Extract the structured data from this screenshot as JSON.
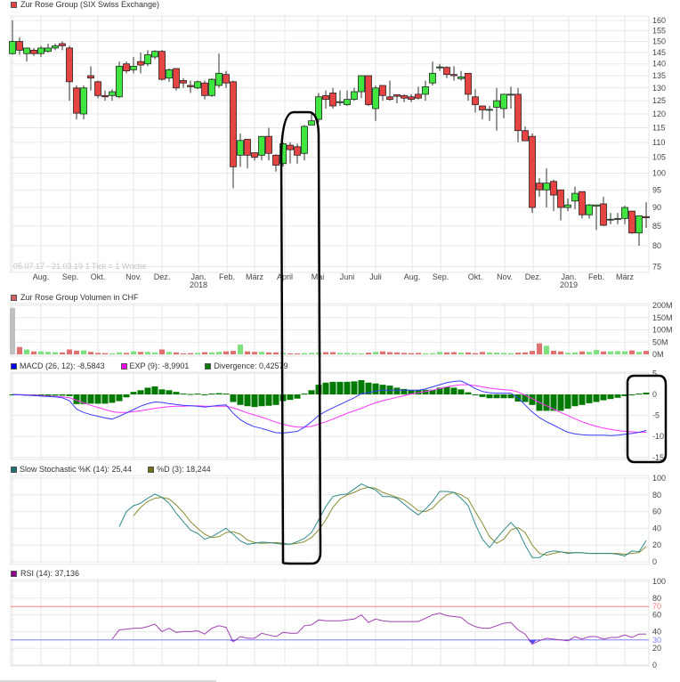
{
  "colors": {
    "up": "#3ee63e",
    "down": "#e84343",
    "macd": "#3a3aff",
    "signal": "#ff33ff",
    "divergence": "#007a00",
    "stoch_k": "#2e8b8b",
    "stoch_d": "#8b8b2e",
    "rsi": "#a040b0",
    "rsi_upper": "#ff8080",
    "rsi_lower": "#8080ff",
    "volume_first": "#c0c0c0",
    "annotation": "#000000"
  },
  "legends": {
    "price": "Zur Rose Group (SIX Swiss Exchange)",
    "volume": "Zur Rose Group Volumen in CHF",
    "macd": "MACD (26, 12): -8,5843",
    "signal": "EXP (9): -8,9901",
    "divergence": "Divergence: 0,42579",
    "stoch_k": "Slow Stochastic %K (14): 25,44",
    "stoch_d": "%D (3): 18,244",
    "rsi": "RSI (14): 37,136"
  },
  "watermark": "05.07.17 - 21.03.19   1 Tick = 1 Woche",
  "chart_data": {
    "type": "candlestick",
    "interval": "weekly",
    "x_ticks": [
      {
        "label": "Aug."
      },
      {
        "label": "Sep."
      },
      {
        "label": "Okt."
      },
      {
        "label": "Nov."
      },
      {
        "label": "Dez."
      },
      {
        "label": "Jan.",
        "year": "2018"
      },
      {
        "label": "Feb."
      },
      {
        "label": "März"
      },
      {
        "label": "April"
      },
      {
        "label": "Mai"
      },
      {
        "label": "Juni"
      },
      {
        "label": "Juli"
      },
      {
        "label": "Aug."
      },
      {
        "label": "Sep."
      },
      {
        "label": "Okt."
      },
      {
        "label": "Nov."
      },
      {
        "label": "Dez."
      },
      {
        "label": "Jan.",
        "year": "2019"
      },
      {
        "label": "Feb."
      },
      {
        "label": "März"
      }
    ],
    "price": {
      "scale": "log",
      "ylim": [
        75,
        160
      ],
      "ticks": [
        160,
        155,
        150,
        145,
        140,
        135,
        130,
        125,
        120,
        115,
        110,
        105,
        100,
        95,
        90,
        85,
        80,
        75
      ],
      "ohlc": [
        [
          144.5,
          160,
          144,
          150
        ],
        [
          150,
          152,
          144,
          146
        ],
        [
          144.5,
          147,
          141,
          147
        ],
        [
          146,
          147,
          143.5,
          144.5
        ],
        [
          144.5,
          148,
          143,
          147
        ],
        [
          145.5,
          149,
          145,
          147
        ],
        [
          147,
          149,
          146,
          148
        ],
        [
          149,
          150,
          146,
          148
        ],
        [
          147,
          148,
          125,
          132.5
        ],
        [
          130,
          131,
          118,
          120.3
        ],
        [
          120,
          131,
          118,
          130
        ],
        [
          135,
          139,
          129,
          134
        ],
        [
          132.5,
          133,
          126,
          127
        ],
        [
          127,
          129,
          125,
          126.5
        ],
        [
          127,
          129.5,
          125,
          128.5
        ],
        [
          126.5,
          141,
          126,
          139
        ],
        [
          140,
          141,
          136,
          137
        ],
        [
          137.5,
          143,
          136,
          139
        ],
        [
          141,
          145,
          136,
          139.5
        ],
        [
          140,
          146,
          139,
          144
        ],
        [
          143,
          146,
          142,
          145.5
        ],
        [
          145.5,
          146,
          133,
          133.5
        ],
        [
          134,
          138,
          132.5,
          137.5
        ],
        [
          138,
          138,
          129,
          130
        ],
        [
          133,
          134,
          130,
          132
        ],
        [
          131,
          133,
          128,
          130.5
        ],
        [
          130,
          133,
          129.5,
          132.5
        ],
        [
          132,
          133,
          125.5,
          127
        ],
        [
          127,
          134,
          126.5,
          133.5
        ],
        [
          131,
          144.5,
          130,
          136
        ],
        [
          135.5,
          137,
          130,
          132
        ],
        [
          132.5,
          133,
          95.5,
          102
        ],
        [
          105.7,
          113,
          102,
          110.6
        ],
        [
          111,
          111,
          101.5,
          105.7
        ],
        [
          106.5,
          106.5,
          104,
          105
        ],
        [
          105.7,
          112,
          104,
          112
        ],
        [
          112,
          115,
          104,
          106.3
        ],
        [
          105.7,
          106,
          100.5,
          102.5
        ],
        [
          103,
          110,
          102,
          109.5
        ],
        [
          109,
          110,
          103,
          107.5
        ],
        [
          108.5,
          109.5,
          103,
          105.7
        ],
        [
          106.3,
          116,
          104,
          115.5
        ],
        [
          116,
          121,
          116,
          117.5
        ],
        [
          118,
          128,
          117,
          126.5
        ],
        [
          127,
          129,
          122,
          125.5
        ],
        [
          128,
          130,
          122,
          123
        ],
        [
          124.6,
          129,
          123,
          124.6
        ],
        [
          123.5,
          129,
          123,
          125.5
        ],
        [
          125.5,
          130,
          125,
          128.5
        ],
        [
          128.5,
          135,
          126,
          135
        ],
        [
          135,
          135,
          123,
          123.5
        ],
        [
          122,
          131,
          117.5,
          130
        ],
        [
          131,
          131,
          125,
          127
        ],
        [
          126.5,
          133,
          125,
          125.5
        ],
        [
          127.3,
          127.5,
          124,
          126.7
        ],
        [
          127,
          127.5,
          124.5,
          126
        ],
        [
          126.5,
          127.5,
          124.5,
          125.5
        ],
        [
          127.5,
          130.5,
          125.5,
          126
        ],
        [
          127.5,
          133,
          125,
          130.5
        ],
        [
          132,
          141,
          131,
          136
        ],
        [
          138.3,
          140,
          137,
          138.7
        ],
        [
          138.5,
          139,
          134,
          135.5
        ],
        [
          135.5,
          139,
          133,
          135
        ],
        [
          133.8,
          137,
          133,
          134.5
        ],
        [
          136,
          136,
          125,
          127.5
        ],
        [
          126.5,
          129.5,
          120.5,
          123.5
        ],
        [
          123,
          123,
          118,
          121.5
        ],
        [
          121.7,
          123,
          117.5,
          121.7
        ],
        [
          122.5,
          130,
          114,
          125
        ],
        [
          122,
          127.5,
          118.5,
          127.5
        ],
        [
          127.3,
          130.5,
          122,
          127.5
        ],
        [
          127.5,
          130,
          110,
          114
        ],
        [
          114,
          115.5,
          110.5,
          110.5
        ],
        [
          112,
          113,
          88.5,
          90
        ],
        [
          97,
          98.5,
          93,
          95
        ],
        [
          95,
          101.5,
          90,
          97
        ],
        [
          97.5,
          98,
          89,
          93.5
        ],
        [
          95,
          95,
          86.5,
          90
        ],
        [
          90,
          92.5,
          89,
          90.7
        ],
        [
          91.8,
          96,
          89.5,
          94
        ],
        [
          94.5,
          94.5,
          87,
          88
        ],
        [
          88,
          91,
          87,
          90.7
        ],
        [
          90.4,
          90.7,
          84,
          90.7
        ],
        [
          91,
          93,
          85,
          85.2
        ],
        [
          86.8,
          88.5,
          85.5,
          86.8
        ],
        [
          87,
          88.5,
          85.5,
          87
        ],
        [
          87,
          90.5,
          85.5,
          90
        ],
        [
          89,
          89,
          83,
          83.2
        ],
        [
          83.2,
          87.7,
          80,
          87.7
        ],
        [
          87.5,
          91.5,
          84.5,
          87.2
        ]
      ]
    },
    "volume": {
      "unit": "M CHF",
      "ylim": [
        0,
        200
      ],
      "ticks": [
        "200M",
        "150M",
        "100M",
        "50M",
        "0M"
      ],
      "values": [
        190,
        30,
        20,
        12,
        12,
        10,
        9,
        8,
        20,
        15,
        16,
        10,
        6,
        5,
        4,
        8,
        6,
        12,
        10,
        10,
        8,
        20,
        10,
        8,
        4,
        5,
        6,
        9,
        8,
        10,
        12,
        14,
        40,
        12,
        10,
        10,
        8,
        8,
        6,
        4,
        4,
        5,
        6,
        8,
        9,
        9,
        6,
        6,
        5,
        4,
        7,
        10,
        12,
        9,
        8,
        6,
        5,
        6,
        4,
        5,
        10,
        8,
        9,
        7,
        8,
        5,
        10,
        8,
        7,
        6,
        5,
        7,
        8,
        14,
        45,
        35,
        15,
        12,
        6,
        8,
        12,
        10,
        18,
        12,
        12,
        13,
        12,
        16,
        10,
        14
      ]
    },
    "macd": {
      "ylim": [
        -15,
        5
      ],
      "ticks": [
        5,
        0,
        -5,
        -10,
        -15
      ],
      "macd": [
        0,
        -0.1,
        -0.2,
        -0.3,
        -0.4,
        -0.5,
        -0.6,
        -0.8,
        -1.5,
        -3.5,
        -4.3,
        -4.8,
        -5.2,
        -5.6,
        -5.9,
        -5.2,
        -4.4,
        -3.6,
        -2.8,
        -2.2,
        -1.8,
        -1.9,
        -2.2,
        -2.4,
        -2.6,
        -2.7,
        -2.8,
        -3.0,
        -2.8,
        -2.6,
        -2.5,
        -4.5,
        -6.0,
        -7.0,
        -7.7,
        -8.1,
        -8.6,
        -9.1,
        -9.2,
        -9.0,
        -8.8,
        -7.8,
        -6.5,
        -5.0,
        -4.0,
        -3.2,
        -2.4,
        -1.6,
        -0.8,
        0.2,
        0.4,
        0.8,
        1.0,
        1.0,
        1.0,
        1.0,
        1.0,
        1.0,
        1.3,
        1.8,
        2.3,
        2.8,
        3.1,
        3.2,
        2.4,
        1.4,
        0.7,
        0.4,
        0.3,
        0.3,
        0.3,
        -0.8,
        -2.5,
        -4.2,
        -5.5,
        -6.5,
        -7.3,
        -8.2,
        -9.0,
        -9.4,
        -9.6,
        -9.7,
        -9.7,
        -9.7,
        -9.8,
        -9.7,
        -9.5,
        -9.3,
        -9.0,
        -8.58
      ],
      "signal": [
        0,
        -0.05,
        -0.1,
        -0.2,
        -0.3,
        -0.4,
        -0.5,
        -0.6,
        -0.8,
        -1.4,
        -2.0,
        -2.6,
        -3.1,
        -3.6,
        -4.1,
        -4.3,
        -4.3,
        -4.1,
        -3.9,
        -3.6,
        -3.3,
        -3.1,
        -2.9,
        -2.8,
        -2.8,
        -2.7,
        -2.7,
        -2.8,
        -2.8,
        -2.8,
        -2.8,
        -3.2,
        -3.8,
        -4.4,
        -4.9,
        -5.4,
        -6.0,
        -6.6,
        -7.1,
        -7.5,
        -7.8,
        -7.8,
        -7.6,
        -7.1,
        -6.5,
        -5.9,
        -5.2,
        -4.5,
        -3.9,
        -3.3,
        -2.6,
        -2.0,
        -1.5,
        -1.1,
        -0.7,
        -0.3,
        0.1,
        0.4,
        0.7,
        1.0,
        1.4,
        1.8,
        2.1,
        2.3,
        2.3,
        2.1,
        1.8,
        1.5,
        1.3,
        1.1,
        1.0,
        0.6,
        -0.2,
        -1.0,
        -1.9,
        -2.7,
        -3.5,
        -4.3,
        -5.0,
        -5.8,
        -6.5,
        -7.1,
        -7.6,
        -8.0,
        -8.3,
        -8.6,
        -8.8,
        -8.9,
        -9.0,
        -8.99
      ],
      "divergence": [
        0,
        -0.2,
        -0.3,
        -0.3,
        -0.3,
        -0.3,
        -0.3,
        -0.3,
        -0.4,
        -2.3,
        -2.3,
        -2.2,
        -2.2,
        -2.2,
        -2.0,
        -1.6,
        -0.7,
        0.6,
        1.0,
        1.6,
        1.9,
        1.2,
        1.0,
        0.6,
        0.2,
        0.1,
        0.2,
        -0.1,
        0.2,
        0.3,
        0.2,
        -1.8,
        -2.5,
        -2.8,
        -3.0,
        -2.8,
        -2.7,
        -2.5,
        -1.6,
        -1.3,
        -1.0,
        0.2,
        1.0,
        2.3,
        2.8,
        3.0,
        3.0,
        3.0,
        3.1,
        3.4,
        2.8,
        2.6,
        2.3,
        2.1,
        1.6,
        1.3,
        1.1,
        1.1,
        1.1,
        1.1,
        1.6,
        1.8,
        1.6,
        1.2,
        0.5,
        0.0,
        -0.6,
        -0.9,
        -0.9,
        -0.9,
        -0.9,
        -1.7,
        -1.8,
        -2.5,
        -3.9,
        -3.9,
        -3.9,
        -3.9,
        -3.4,
        -2.8,
        -2.5,
        -2.1,
        -1.8,
        -1.4,
        -1.1,
        -0.8,
        -0.4,
        0.0,
        0.2,
        0.43
      ]
    },
    "stochastic": {
      "ylim": [
        0,
        100
      ],
      "ticks": [
        100,
        80,
        60,
        40,
        20,
        0
      ],
      "k": [
        null,
        null,
        null,
        null,
        null,
        null,
        null,
        null,
        null,
        null,
        null,
        null,
        null,
        null,
        null,
        42,
        60,
        67,
        70,
        76,
        81,
        77,
        70,
        58,
        48,
        38,
        34,
        27,
        30,
        35,
        40,
        33,
        25,
        21,
        22,
        23.5,
        23,
        22,
        21,
        21,
        24,
        28,
        35,
        50,
        66,
        78,
        80,
        81,
        87,
        93,
        89,
        86,
        78,
        78,
        76,
        69,
        62,
        56,
        63,
        72,
        84,
        84,
        83,
        76,
        67,
        45,
        27,
        17,
        28,
        38,
        47,
        38,
        20,
        5,
        5,
        11,
        13,
        12,
        10,
        11,
        11,
        10,
        10,
        10,
        10,
        9,
        7,
        13,
        12,
        25.44
      ],
      "d": [
        null,
        null,
        null,
        null,
        null,
        null,
        null,
        null,
        null,
        null,
        null,
        null,
        null,
        null,
        null,
        null,
        null,
        55,
        65,
        72,
        76,
        77,
        75,
        68,
        59,
        48,
        40,
        33,
        29,
        30,
        35,
        36,
        33,
        26,
        23,
        22,
        22.5,
        23,
        22,
        21,
        22,
        24,
        29,
        38,
        50,
        65,
        75,
        80,
        83,
        87,
        89,
        88,
        83,
        80,
        77,
        74,
        68,
        61,
        60,
        64,
        73,
        80,
        83,
        80,
        75,
        60,
        46,
        30,
        22,
        27,
        38,
        41,
        35,
        20,
        10,
        8,
        10,
        12,
        11,
        11,
        11,
        10,
        10,
        10,
        10,
        10,
        9,
        10,
        11,
        18.24
      ]
    },
    "rsi": {
      "ylim": [
        0,
        100
      ],
      "ticks": [
        100,
        80,
        70,
        60,
        40,
        30,
        20,
        0
      ],
      "upper": 70,
      "lower": 30,
      "values": [
        null,
        null,
        null,
        null,
        null,
        null,
        null,
        null,
        null,
        null,
        null,
        null,
        null,
        null,
        31,
        42,
        43,
        44,
        44,
        46,
        49,
        40,
        44,
        39,
        40,
        40,
        41,
        37,
        44,
        47,
        45,
        28,
        34,
        32,
        32,
        38,
        36,
        34,
        39,
        38,
        38,
        47,
        48,
        54,
        53,
        53,
        53,
        54,
        55,
        60,
        51,
        55,
        53,
        52,
        52,
        52,
        52,
        52,
        56,
        60,
        62,
        59,
        58,
        57,
        50,
        46,
        44,
        44,
        47,
        50,
        51,
        42,
        37,
        25,
        29,
        32,
        31,
        30,
        29,
        34,
        31,
        34,
        34,
        31,
        33,
        33,
        36,
        33,
        37,
        37.14
      ]
    }
  }
}
